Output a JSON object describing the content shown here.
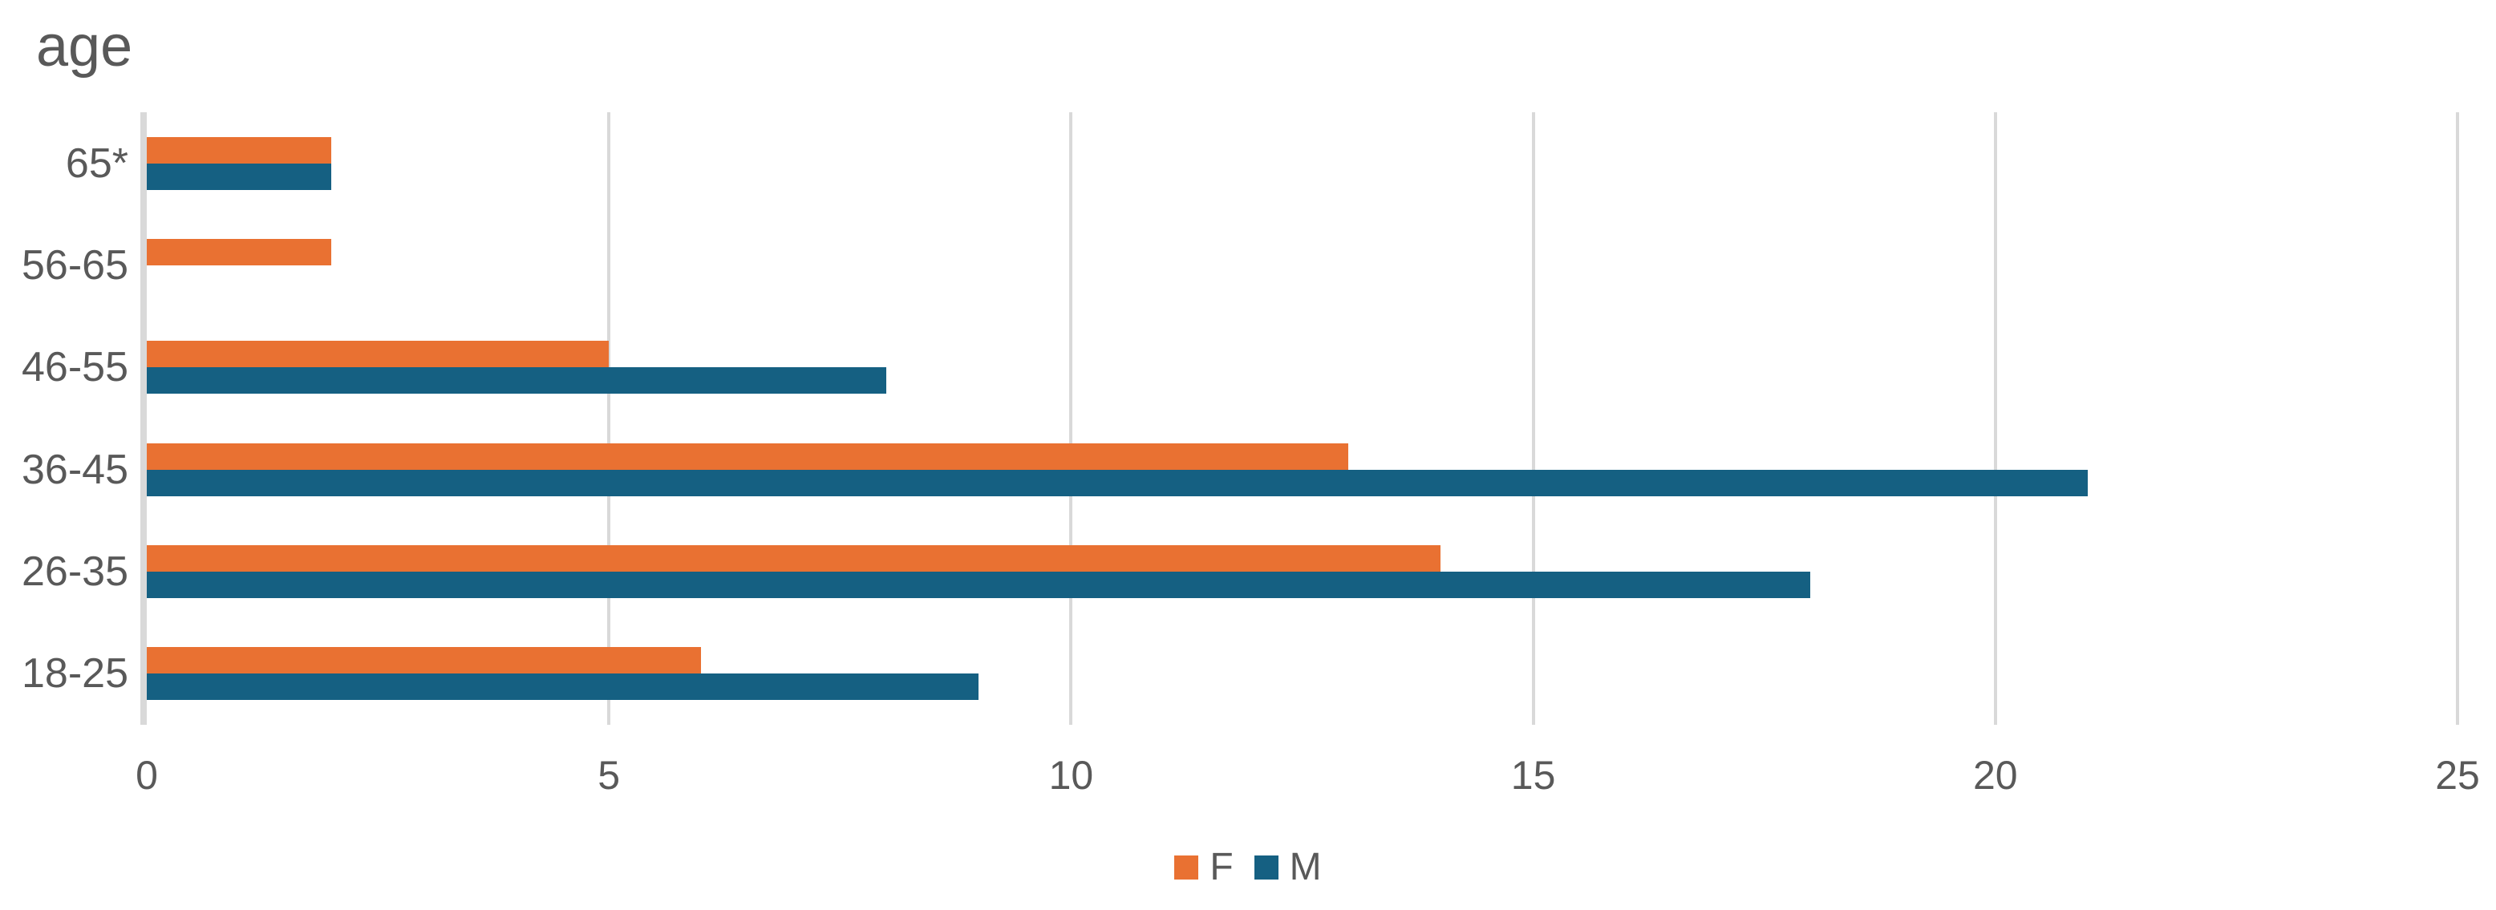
{
  "chart_data": {
    "type": "bar",
    "orientation": "horizontal",
    "title": "age",
    "xlabel": "",
    "ylabel": "age",
    "categories": [
      "65*",
      "56-65",
      "46-55",
      "36-45",
      "26-35",
      "18-25"
    ],
    "series": [
      {
        "name": "F",
        "color": "#E97132",
        "values": [
          2,
          2,
          5,
          13,
          14,
          6
        ]
      },
      {
        "name": "M",
        "color": "#156082",
        "values": [
          2,
          0,
          8,
          21,
          18,
          9
        ]
      }
    ],
    "xlim": [
      0,
      25
    ],
    "xticks": [
      0,
      5,
      10,
      15,
      20,
      25
    ],
    "grid": "vertical-only",
    "gridline_color": "#D9D9D9",
    "axis_line_color": "#D9D9D9",
    "text_color": "#595959",
    "legend_position": "bottom-center",
    "legend": [
      {
        "label": "F",
        "color": "#E97132"
      },
      {
        "label": "M",
        "color": "#156082"
      }
    ]
  }
}
